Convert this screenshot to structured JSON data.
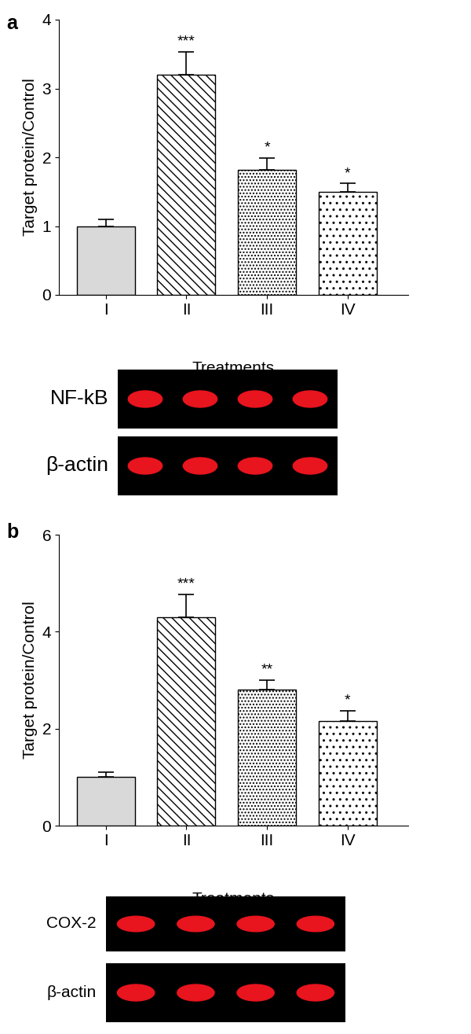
{
  "chart_data": [
    {
      "type": "bar",
      "panel_label": "a",
      "ylabel": "Target protein/Control",
      "xlabel": "Treatments",
      "categories": [
        "I",
        "II",
        "III",
        "IV"
      ],
      "values": [
        1.0,
        3.2,
        1.82,
        1.5
      ],
      "errors": [
        0.1,
        0.33,
        0.17,
        0.12
      ],
      "colors": [
        "#d9d9d9",
        "#ffffff",
        "#ffffff",
        "#ffffff"
      ],
      "annotations": [
        {
          "category": "II",
          "text": "***"
        },
        {
          "category": "III",
          "text": "*"
        },
        {
          "category": "IV",
          "text": "*"
        }
      ],
      "ylim": [
        0,
        4
      ],
      "yticks": [
        0,
        1,
        2,
        3,
        4
      ],
      "grid": false,
      "blot_labels": [
        "NF-kB",
        "β-actin"
      ]
    },
    {
      "type": "bar",
      "panel_label": "b",
      "ylabel": "Target protein/Control",
      "xlabel": "Treatments",
      "categories": [
        "I",
        "II",
        "III",
        "IV"
      ],
      "values": [
        1.0,
        4.3,
        2.8,
        2.15
      ],
      "errors": [
        0.1,
        0.47,
        0.2,
        0.22
      ],
      "colors": [
        "#d9d9d9",
        "#ffffff",
        "#ffffff",
        "#ffffff"
      ],
      "annotations": [
        {
          "category": "II",
          "text": "***"
        },
        {
          "category": "III",
          "text": "**"
        },
        {
          "category": "IV",
          "text": "*"
        }
      ],
      "ylim": [
        0,
        6
      ],
      "yticks": [
        0,
        2,
        4,
        6
      ],
      "grid": false,
      "blot_labels": [
        "COX-2",
        "β-actin"
      ]
    }
  ]
}
